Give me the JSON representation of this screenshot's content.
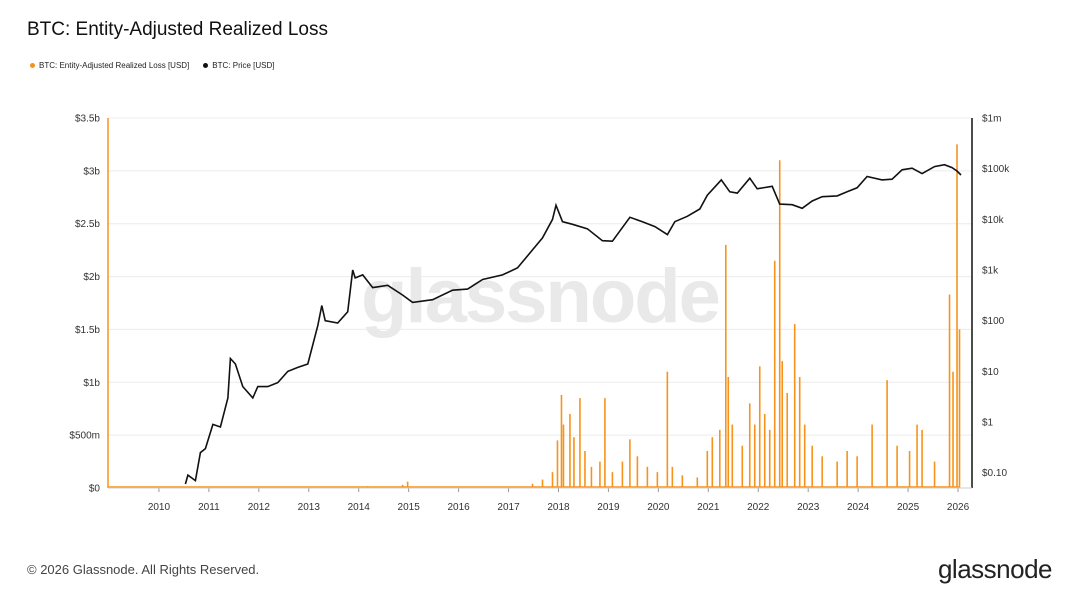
{
  "title": "BTC: Entity-Adjusted Realized Loss",
  "legend": [
    {
      "label": "BTC: Entity-Adjusted Realized Loss [USD]",
      "color": "#f7931a"
    },
    {
      "label": "BTC: Price [USD]",
      "color": "#111111"
    }
  ],
  "watermark": "glassnode",
  "footer": "© 2026 Glassnode. All Rights Reserved.",
  "logo": "glassnode",
  "colors": {
    "loss": "#f7931a",
    "price": "#111111",
    "grid": "#ececec"
  },
  "chart_data": {
    "type": "bar",
    "x_ticks": [
      "2010",
      "2011",
      "2012",
      "2013",
      "2014",
      "2015",
      "2016",
      "2017",
      "2018",
      "2019",
      "2020",
      "2021",
      "2022",
      "2023",
      "2024",
      "2025",
      "2026"
    ],
    "y_left": {
      "label": "",
      "ticks": [
        "$0",
        "$500m",
        "$1b",
        "$1.5b",
        "$2b",
        "$2.5b",
        "$3b",
        "$3.5b"
      ],
      "range": [
        0,
        3500000000
      ]
    },
    "y_right": {
      "label": "",
      "scale": "log",
      "ticks": [
        "$0.10",
        "$1",
        "$10",
        "$100",
        "$1k",
        "$10k",
        "$100k",
        "$1m"
      ],
      "range": [
        0.05,
        1000000
      ]
    },
    "x_range": [
      2009.0,
      2026.3
    ],
    "series": [
      {
        "name": "BTC: Entity-Adjusted Realized Loss [USD]",
        "axis": "left",
        "points": [
          [
            2010.5,
            2000000
          ],
          [
            2012.0,
            3000000
          ],
          [
            2013.3,
            4000000
          ],
          [
            2013.9,
            10000000
          ],
          [
            2014.2,
            18000000
          ],
          [
            2014.9,
            30000000
          ],
          [
            2015.0,
            60000000
          ],
          [
            2015.7,
            5000000
          ],
          [
            2016.5,
            5000000
          ],
          [
            2017.0,
            10000000
          ],
          [
            2017.5,
            40000000
          ],
          [
            2017.7,
            80000000
          ],
          [
            2017.9,
            150000000
          ],
          [
            2018.0,
            450000000
          ],
          [
            2018.08,
            880000000
          ],
          [
            2018.12,
            600000000
          ],
          [
            2018.25,
            700000000
          ],
          [
            2018.33,
            480000000
          ],
          [
            2018.45,
            850000000
          ],
          [
            2018.55,
            350000000
          ],
          [
            2018.68,
            200000000
          ],
          [
            2018.85,
            250000000
          ],
          [
            2018.95,
            850000000
          ],
          [
            2019.1,
            150000000
          ],
          [
            2019.3,
            250000000
          ],
          [
            2019.45,
            460000000
          ],
          [
            2019.6,
            300000000
          ],
          [
            2019.8,
            200000000
          ],
          [
            2020.0,
            150000000
          ],
          [
            2020.2,
            1100000000
          ],
          [
            2020.3,
            200000000
          ],
          [
            2020.5,
            120000000
          ],
          [
            2020.8,
            100000000
          ],
          [
            2021.0,
            350000000
          ],
          [
            2021.1,
            480000000
          ],
          [
            2021.25,
            550000000
          ],
          [
            2021.37,
            2300000000
          ],
          [
            2021.42,
            1050000000
          ],
          [
            2021.5,
            600000000
          ],
          [
            2021.7,
            400000000
          ],
          [
            2021.85,
            800000000
          ],
          [
            2021.95,
            600000000
          ],
          [
            2022.05,
            1150000000
          ],
          [
            2022.15,
            700000000
          ],
          [
            2022.25,
            550000000
          ],
          [
            2022.35,
            2150000000
          ],
          [
            2022.45,
            3100000000
          ],
          [
            2022.5,
            1200000000
          ],
          [
            2022.6,
            900000000
          ],
          [
            2022.75,
            1550000000
          ],
          [
            2022.85,
            1050000000
          ],
          [
            2022.95,
            600000000
          ],
          [
            2023.1,
            400000000
          ],
          [
            2023.3,
            300000000
          ],
          [
            2023.6,
            250000000
          ],
          [
            2023.8,
            350000000
          ],
          [
            2024.0,
            300000000
          ],
          [
            2024.3,
            600000000
          ],
          [
            2024.6,
            1020000000
          ],
          [
            2024.8,
            400000000
          ],
          [
            2025.05,
            350000000
          ],
          [
            2025.2,
            600000000
          ],
          [
            2025.3,
            550000000
          ],
          [
            2025.55,
            250000000
          ],
          [
            2025.85,
            1830000000
          ],
          [
            2025.92,
            1100000000
          ],
          [
            2026.0,
            3250000000
          ],
          [
            2026.05,
            1500000000
          ]
        ]
      },
      {
        "name": "BTC: Price [USD]",
        "axis": "right",
        "points": [
          [
            2010.55,
            0.06
          ],
          [
            2010.6,
            0.09
          ],
          [
            2010.75,
            0.07
          ],
          [
            2010.85,
            0.25
          ],
          [
            2010.95,
            0.3
          ],
          [
            2011.1,
            0.9
          ],
          [
            2011.25,
            0.8
          ],
          [
            2011.4,
            3
          ],
          [
            2011.45,
            18
          ],
          [
            2011.55,
            14
          ],
          [
            2011.7,
            5
          ],
          [
            2011.9,
            3
          ],
          [
            2012.0,
            5
          ],
          [
            2012.2,
            5
          ],
          [
            2012.4,
            6
          ],
          [
            2012.6,
            10
          ],
          [
            2012.8,
            12
          ],
          [
            2013.0,
            14
          ],
          [
            2013.2,
            80
          ],
          [
            2013.28,
            200
          ],
          [
            2013.35,
            100
          ],
          [
            2013.6,
            90
          ],
          [
            2013.8,
            150
          ],
          [
            2013.9,
            1000
          ],
          [
            2013.95,
            700
          ],
          [
            2014.1,
            800
          ],
          [
            2014.3,
            450
          ],
          [
            2014.6,
            500
          ],
          [
            2014.9,
            320
          ],
          [
            2015.1,
            230
          ],
          [
            2015.5,
            260
          ],
          [
            2015.9,
            400
          ],
          [
            2016.2,
            420
          ],
          [
            2016.5,
            650
          ],
          [
            2016.9,
            800
          ],
          [
            2017.2,
            1100
          ],
          [
            2017.5,
            2500
          ],
          [
            2017.7,
            4300
          ],
          [
            2017.9,
            10000
          ],
          [
            2017.97,
            19000
          ],
          [
            2018.1,
            9000
          ],
          [
            2018.3,
            8000
          ],
          [
            2018.6,
            6500
          ],
          [
            2018.9,
            3800
          ],
          [
            2019.1,
            3700
          ],
          [
            2019.45,
            11000
          ],
          [
            2019.7,
            9000
          ],
          [
            2019.95,
            7200
          ],
          [
            2020.2,
            5000
          ],
          [
            2020.35,
            9000
          ],
          [
            2020.6,
            11500
          ],
          [
            2020.85,
            16000
          ],
          [
            2021.0,
            30000
          ],
          [
            2021.28,
            60000
          ],
          [
            2021.45,
            35000
          ],
          [
            2021.6,
            33000
          ],
          [
            2021.85,
            65000
          ],
          [
            2022.0,
            40000
          ],
          [
            2022.3,
            45000
          ],
          [
            2022.45,
            20000
          ],
          [
            2022.7,
            19500
          ],
          [
            2022.9,
            16500
          ],
          [
            2023.1,
            23000
          ],
          [
            2023.3,
            28000
          ],
          [
            2023.6,
            29000
          ],
          [
            2023.8,
            35000
          ],
          [
            2024.0,
            42000
          ],
          [
            2024.2,
            70000
          ],
          [
            2024.5,
            60000
          ],
          [
            2024.7,
            62000
          ],
          [
            2024.9,
            95000
          ],
          [
            2025.1,
            102000
          ],
          [
            2025.3,
            80000
          ],
          [
            2025.55,
            110000
          ],
          [
            2025.75,
            120000
          ],
          [
            2025.9,
            105000
          ],
          [
            2026.0,
            90000
          ],
          [
            2026.08,
            75000
          ]
        ]
      }
    ]
  }
}
